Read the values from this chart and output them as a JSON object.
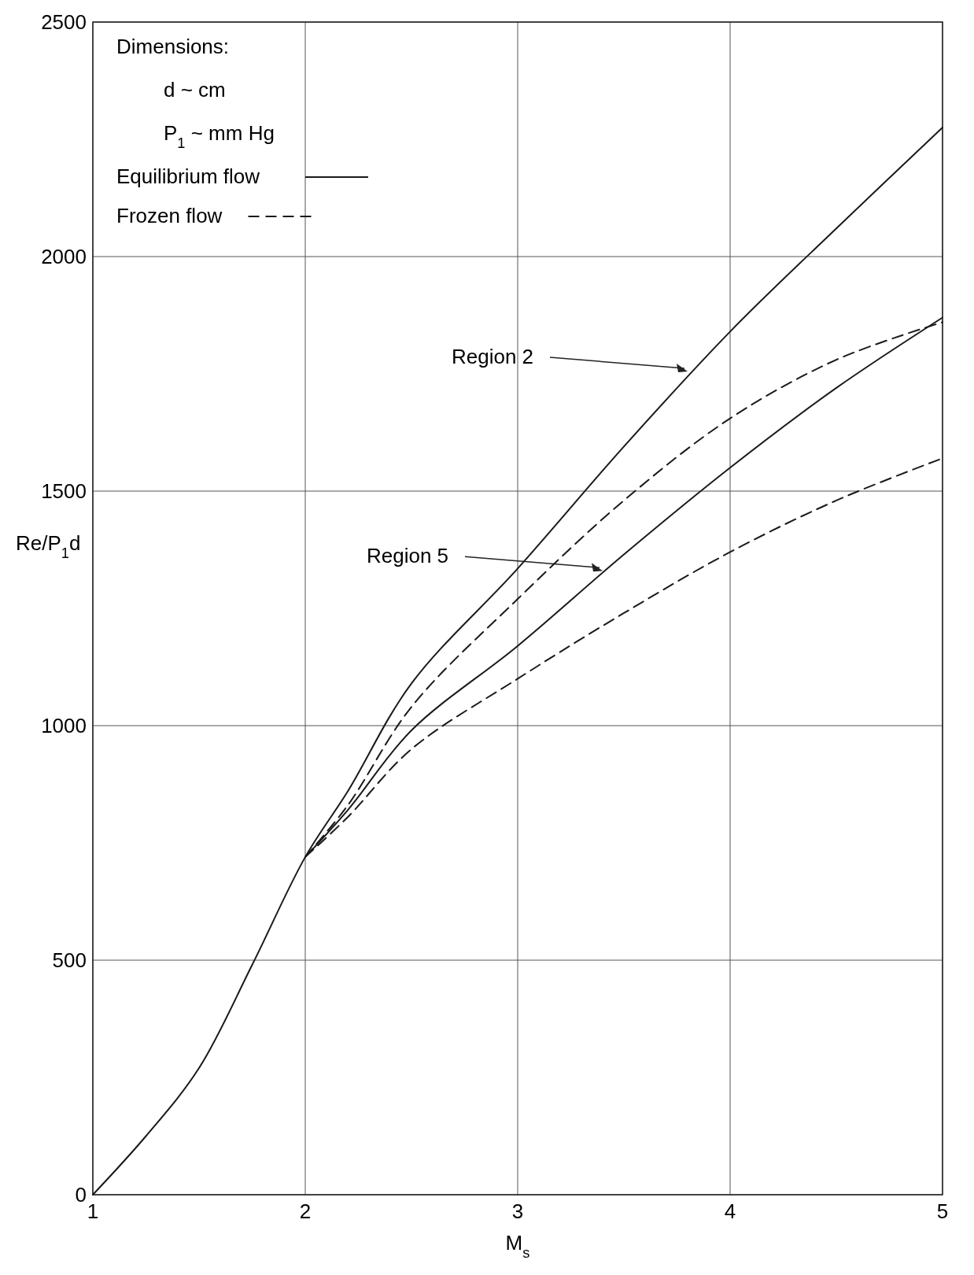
{
  "chart_data": {
    "type": "line",
    "xlabel": "M$_{s}$",
    "ylabel": "Re/P$_{1}$d",
    "xlim": [
      1,
      5
    ],
    "ylim": [
      0,
      2500
    ],
    "xticks": [
      1,
      2,
      3,
      4,
      5
    ],
    "yticks": [
      0,
      500,
      1000,
      1500,
      2000,
      2500
    ],
    "grid": true,
    "legend": "top left",
    "legend_title": "Dimensions:",
    "annotations": [
      "d ~ cm",
      "P$_{1}$ ~ mm Hg",
      {
        "text": "Region 2",
        "x": 3.8,
        "y": 1755
      },
      {
        "text": "Region 5",
        "x": 3.4,
        "y": 1330
      }
    ],
    "series": [
      {
        "name": "Equilibrium flow",
        "color": "#1a1a1a",
        "line_style": "solid",
        "x": [
          1,
          1.25,
          1.5,
          1.75,
          2,
          2.2,
          2.5,
          3,
          3.5,
          4,
          4.5,
          5
        ],
        "values": [
          0,
          125,
          270,
          490,
          720,
          860,
          1090,
          1335,
          1595,
          1840,
          2060,
          2275
        ]
      },
      {
        "name": "Frozen flow",
        "color": "#1a1a1a",
        "line_style": "dashed",
        "x": [
          2,
          2.2,
          2.5,
          3,
          3.5,
          4,
          4.5,
          5
        ],
        "values": [
          720,
          830,
          1040,
          1270,
          1480,
          1655,
          1780,
          1860
        ]
      },
      {
        "color": "#1a1a1a",
        "line_style": "solid",
        "x": [
          2,
          2.2,
          2.5,
          3,
          3.5,
          4,
          4.5,
          5
        ],
        "values": [
          720,
          820,
          990,
          1170,
          1365,
          1550,
          1720,
          1870
        ]
      },
      {
        "color": "#1a1a1a",
        "line_style": "dashed",
        "x": [
          2,
          2.2,
          2.5,
          3,
          3.5,
          4,
          4.5,
          5
        ],
        "values": [
          720,
          805,
          950,
          1100,
          1240,
          1370,
          1480,
          1570
        ]
      }
    ]
  }
}
